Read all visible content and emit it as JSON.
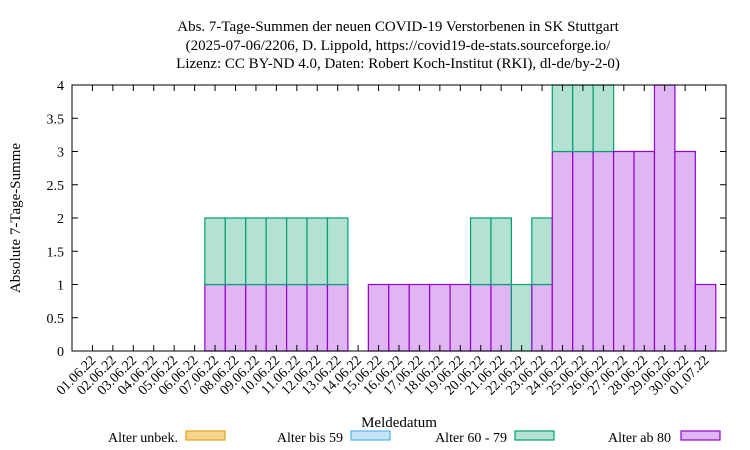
{
  "chart_data": {
    "type": "bar",
    "stacked": true,
    "title": [
      "Abs. 7-Tage-Summen der neuen COVID-19 Verstorbenen in SK Stuttgart",
      "(2025-07-06/2206, D. Lippold, https://covid19-de-stats.sourceforge.io/",
      "Lizenz: CC BY-ND 4.0, Daten: Robert Koch-Institut (RKI), dl-de/by-2-0)"
    ],
    "xlabel": "Meldedatum",
    "ylabel": "Absolute 7-Tage-Summe",
    "ylim": [
      0,
      4
    ],
    "yticks": [
      "0",
      "0.5",
      "1",
      "1.5",
      "2",
      "2.5",
      "3",
      "3.5",
      "4"
    ],
    "categories": [
      "01.06.22",
      "02.06.22",
      "03.06.22",
      "04.06.22",
      "05.06.22",
      "06.06.22",
      "07.06.22",
      "08.06.22",
      "09.06.22",
      "10.06.22",
      "11.06.22",
      "12.06.22",
      "13.06.22",
      "14.06.22",
      "15.06.22",
      "16.06.22",
      "17.06.22",
      "18.06.22",
      "19.06.22",
      "20.06.22",
      "21.06.22",
      "22.06.22",
      "23.06.22",
      "24.06.22",
      "25.06.22",
      "26.06.22",
      "27.06.22",
      "28.06.22",
      "29.06.22",
      "30.06.22",
      "01.07.22"
    ],
    "series": [
      {
        "name": "Alter unbek.",
        "color": "#f6d68a",
        "stroke": "#e6a01a",
        "values": [
          0,
          0,
          0,
          0,
          0,
          0,
          0,
          0,
          0,
          0,
          0,
          0,
          0,
          0,
          0,
          0,
          0,
          0,
          0,
          0,
          0,
          0,
          0,
          0,
          0,
          0,
          0,
          0,
          0,
          0,
          0
        ]
      },
      {
        "name": "Alter bis 59",
        "color": "#c6e4f6",
        "stroke": "#56b4e9",
        "values": [
          0,
          0,
          0,
          0,
          0,
          0,
          0,
          0,
          0,
          0,
          0,
          0,
          0,
          0,
          0,
          0,
          0,
          0,
          0,
          0,
          0,
          0,
          0,
          0,
          0,
          0,
          0,
          0,
          0,
          0,
          0
        ]
      },
      {
        "name": "Alter 60 - 79",
        "color": "#b3e2d3",
        "stroke": "#009e73",
        "values": [
          0,
          0,
          0,
          0,
          0,
          0,
          1,
          1,
          1,
          1,
          1,
          1,
          1,
          0,
          0,
          0,
          0,
          0,
          0,
          1,
          1,
          1,
          1,
          1,
          1,
          1,
          0,
          0,
          0,
          0,
          0
        ]
      },
      {
        "name": "Alter ab 80",
        "color": "#dfb6f2",
        "stroke": "#9400d3",
        "values": [
          0,
          0,
          0,
          0,
          0,
          0,
          1,
          1,
          1,
          1,
          1,
          1,
          1,
          0,
          1,
          1,
          1,
          1,
          1,
          1,
          1,
          0,
          1,
          3,
          3,
          3,
          3,
          3,
          4,
          3,
          1
        ]
      }
    ],
    "legend_position": "bottom",
    "grid": false
  }
}
